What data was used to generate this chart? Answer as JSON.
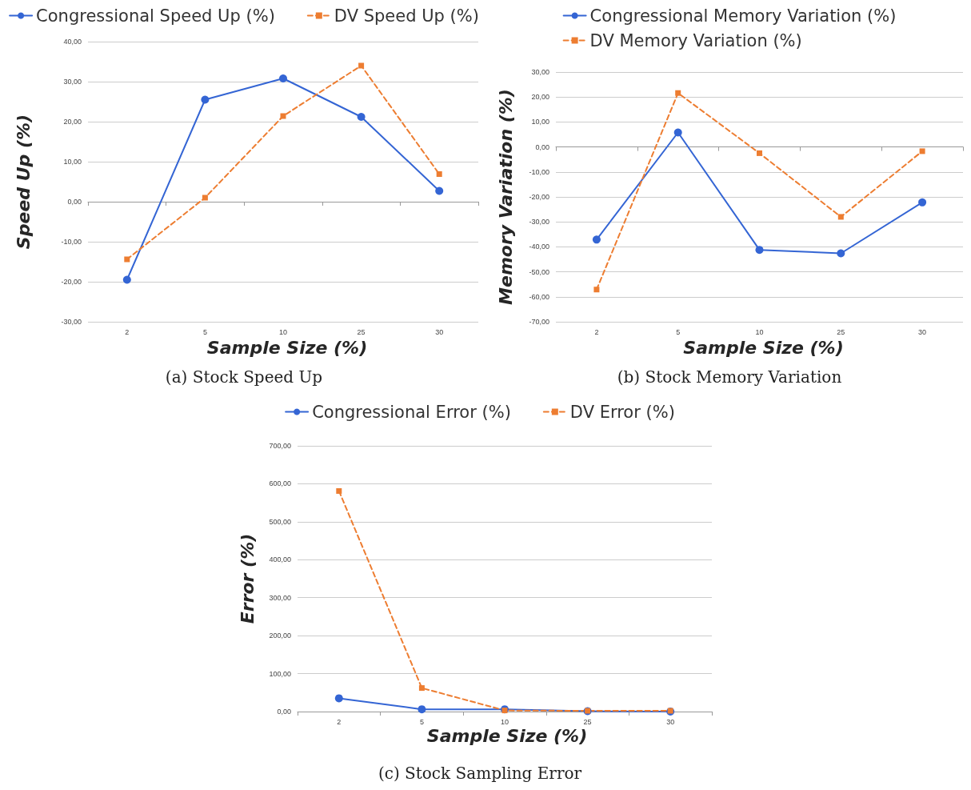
{
  "chart_data": [
    {
      "type": "line",
      "xlabel": "Sample Size (%)",
      "ylabel": "Speed Up (%)",
      "categories": [
        "2",
        "5",
        "10",
        "25",
        "30"
      ],
      "series": [
        {
          "name": "Congressional Speed Up (%)",
          "color": "#3465d4",
          "marker": "circle",
          "line_style": "solid",
          "values": [
            -19.5,
            25.5,
            30.8,
            21.2,
            2.7
          ]
        },
        {
          "name": "DV Speed Up (%)",
          "color": "#ed7d31",
          "marker": "square",
          "line_style": "dashed",
          "values": [
            -14.4,
            1.0,
            21.4,
            34.0,
            6.9
          ]
        }
      ],
      "ylim": [
        -30,
        40
      ],
      "yticks": [
        {
          "value": -30,
          "label": "-30,00"
        },
        {
          "value": -20,
          "label": "-20,00"
        },
        {
          "value": -10,
          "label": "-10,00"
        },
        {
          "value": 0,
          "label": "0,00"
        },
        {
          "value": 10,
          "label": "10,00"
        },
        {
          "value": 20,
          "label": "20,00"
        },
        {
          "value": 30,
          "label": "30,00"
        },
        {
          "value": 40,
          "label": "40,00"
        }
      ],
      "grid": "y",
      "legend": "top",
      "annotations": [
        "(a) Stock Speed Up"
      ]
    },
    {
      "type": "line",
      "xlabel": "Sample Size (%)",
      "ylabel": "Memory Variation (%)",
      "categories": [
        "2",
        "5",
        "10",
        "25",
        "30"
      ],
      "series": [
        {
          "name": "Congressional Memory Variation (%)",
          "color": "#3465d4",
          "marker": "circle",
          "line_style": "solid",
          "values": [
            -37.1,
            5.8,
            -41.2,
            -42.6,
            -22.2
          ]
        },
        {
          "name": "DV Memory Variation (%)",
          "color": "#ed7d31",
          "marker": "square",
          "line_style": "dashed",
          "values": [
            -57.1,
            21.6,
            -2.5,
            -28.0,
            -1.7
          ]
        }
      ],
      "ylim": [
        -70,
        30
      ],
      "yticks": [
        {
          "value": -70,
          "label": "-70,00"
        },
        {
          "value": -60,
          "label": "-60,00"
        },
        {
          "value": -50,
          "label": "-50,00"
        },
        {
          "value": -40,
          "label": "-40,00"
        },
        {
          "value": -30,
          "label": "-30,00"
        },
        {
          "value": -20,
          "label": "-20,00"
        },
        {
          "value": -10,
          "label": "-10,00"
        },
        {
          "value": 0,
          "label": "0,00"
        },
        {
          "value": 10,
          "label": "10,00"
        },
        {
          "value": 20,
          "label": "20,00"
        },
        {
          "value": 30,
          "label": "30,00"
        }
      ],
      "grid": "y",
      "legend": "top",
      "annotations": [
        "(b) Stock Memory Variation"
      ]
    },
    {
      "type": "line",
      "xlabel": "Sample Size (%)",
      "ylabel": "Error (%)",
      "categories": [
        "2",
        "5",
        "10",
        "25",
        "30"
      ],
      "series": [
        {
          "name": "Congressional Error (%)",
          "color": "#3465d4",
          "marker": "circle",
          "line_style": "solid",
          "values": [
            35,
            6,
            6,
            1,
            0
          ]
        },
        {
          "name": "DV Error (%)",
          "color": "#ed7d31",
          "marker": "square",
          "line_style": "dashed",
          "values": [
            581,
            62,
            3,
            2,
            2
          ]
        }
      ],
      "ylim": [
        0,
        700
      ],
      "yticks": [
        {
          "value": 0,
          "label": "0,00"
        },
        {
          "value": 100,
          "label": "100,00"
        },
        {
          "value": 200,
          "label": "200,00"
        },
        {
          "value": 300,
          "label": "300,00"
        },
        {
          "value": 400,
          "label": "400,00"
        },
        {
          "value": 500,
          "label": "500,00"
        },
        {
          "value": 600,
          "label": "600,00"
        },
        {
          "value": 700,
          "label": "700,00"
        }
      ],
      "grid": "y",
      "legend": "top",
      "annotations": [
        "(c) Stock Sampling Error"
      ]
    }
  ]
}
